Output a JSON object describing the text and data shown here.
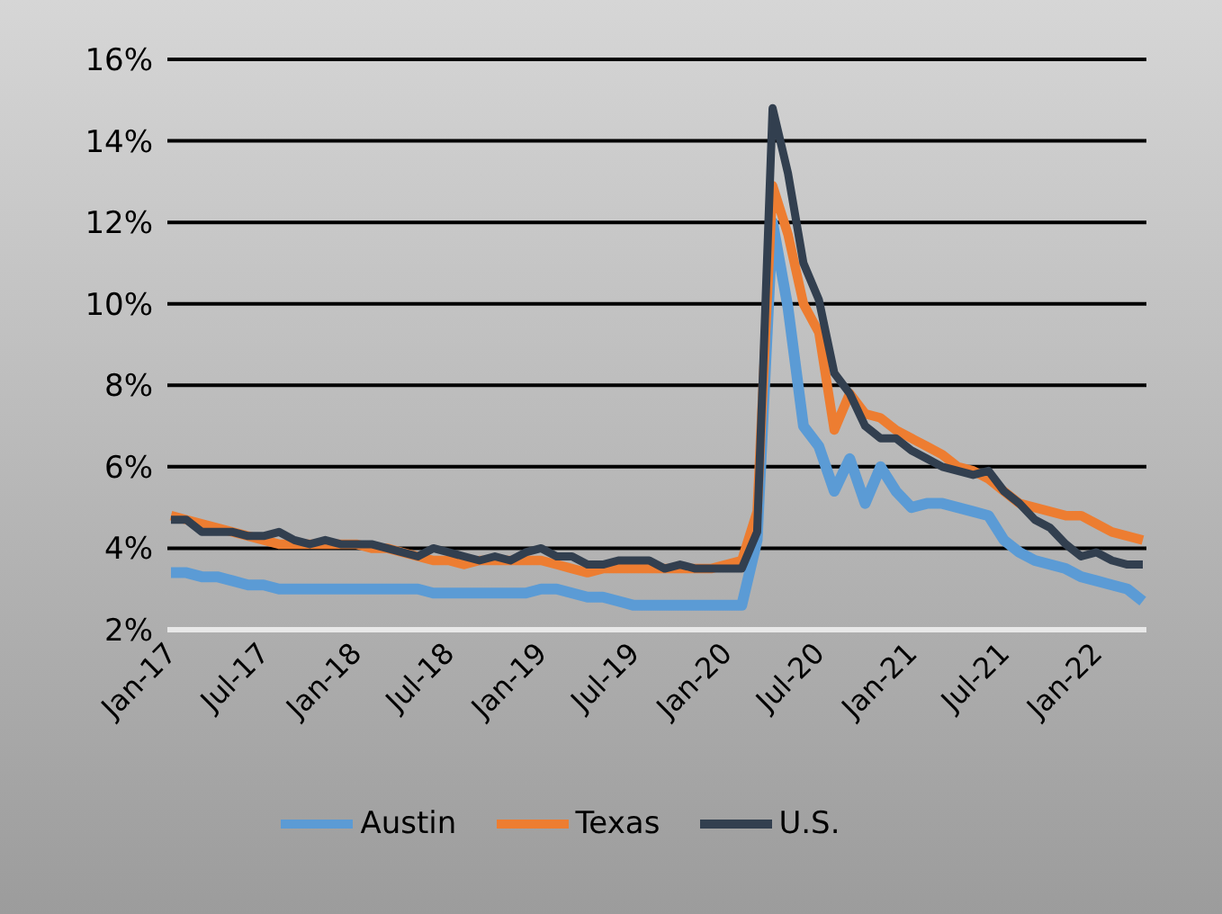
{
  "chart_data": {
    "type": "line",
    "categories": [
      "Jan-17",
      null,
      null,
      null,
      null,
      null,
      "Jul-17",
      null,
      null,
      null,
      null,
      null,
      "Jan-18",
      null,
      null,
      null,
      null,
      null,
      "Jul-18",
      null,
      null,
      null,
      null,
      null,
      "Jan-19",
      null,
      null,
      null,
      null,
      null,
      "Jul-19",
      null,
      null,
      null,
      null,
      null,
      "Jan-20",
      null,
      null,
      null,
      null,
      null,
      "Jul-20",
      null,
      null,
      null,
      null,
      null,
      "Jan-21",
      null,
      null,
      null,
      null,
      null,
      "Jul-21",
      null,
      null,
      null,
      null,
      null,
      "Jan-22",
      null,
      null,
      null
    ],
    "series": [
      {
        "name": "Austin",
        "color": "#5b9bd5",
        "values": [
          3.4,
          3.4,
          3.3,
          3.3,
          3.2,
          3.1,
          3.1,
          3.0,
          3.0,
          3.0,
          3.0,
          3.0,
          3.0,
          3.0,
          3.0,
          3.0,
          3.0,
          2.9,
          2.9,
          2.9,
          2.9,
          2.9,
          2.9,
          2.9,
          3.0,
          3.0,
          2.9,
          2.8,
          2.8,
          2.7,
          2.6,
          2.6,
          2.6,
          2.6,
          2.6,
          2.6,
          2.6,
          2.6,
          4.2,
          12.0,
          9.9,
          7.0,
          6.5,
          5.4,
          6.2,
          5.1,
          6.0,
          5.4,
          5.0,
          5.1,
          5.1,
          5.0,
          4.9,
          4.8,
          4.2,
          3.9,
          3.7,
          3.6,
          3.5,
          3.3,
          3.2,
          3.1,
          3.0,
          2.7
        ]
      },
      {
        "name": "Texas",
        "color": "#ed7d31",
        "values": [
          4.8,
          4.7,
          4.6,
          4.5,
          4.4,
          4.3,
          4.2,
          4.1,
          4.1,
          4.1,
          4.1,
          4.1,
          4.1,
          4.0,
          4.0,
          3.9,
          3.8,
          3.7,
          3.7,
          3.6,
          3.7,
          3.7,
          3.7,
          3.7,
          3.7,
          3.6,
          3.5,
          3.4,
          3.5,
          3.5,
          3.5,
          3.5,
          3.5,
          3.5,
          3.5,
          3.5,
          3.6,
          3.7,
          4.9,
          12.9,
          11.7,
          10.0,
          9.3,
          6.9,
          7.8,
          7.3,
          7.2,
          6.9,
          6.7,
          6.5,
          6.3,
          6.0,
          5.9,
          5.7,
          5.4,
          5.1,
          5.0,
          4.9,
          4.8,
          4.8,
          4.6,
          4.4,
          4.3,
          4.2
        ]
      },
      {
        "name": "U.S.",
        "color": "#323f4f",
        "values": [
          4.7,
          4.7,
          4.4,
          4.4,
          4.4,
          4.3,
          4.3,
          4.4,
          4.2,
          4.1,
          4.2,
          4.1,
          4.1,
          4.1,
          4.0,
          3.9,
          3.8,
          4.0,
          3.9,
          3.8,
          3.7,
          3.8,
          3.7,
          3.9,
          4.0,
          3.8,
          3.8,
          3.6,
          3.6,
          3.7,
          3.7,
          3.7,
          3.5,
          3.6,
          3.5,
          3.5,
          3.5,
          3.5,
          4.4,
          14.8,
          13.2,
          11.0,
          10.1,
          8.3,
          7.8,
          7.0,
          6.7,
          6.7,
          6.4,
          6.2,
          6.0,
          5.9,
          5.8,
          5.9,
          5.4,
          5.1,
          4.7,
          4.5,
          4.1,
          3.8,
          3.9,
          3.7,
          3.6,
          3.6
        ]
      }
    ],
    "ylim": [
      2,
      16
    ],
    "yticks": [
      {
        "value": 2,
        "label": "2%"
      },
      {
        "value": 4,
        "label": "4%"
      },
      {
        "value": 6,
        "label": "6%"
      },
      {
        "value": 8,
        "label": "8%"
      },
      {
        "value": 10,
        "label": "10%"
      },
      {
        "value": 12,
        "label": "12%"
      },
      {
        "value": 14,
        "label": "14%"
      },
      {
        "value": 16,
        "label": "16%"
      }
    ],
    "grid": "y",
    "legend": "bottom"
  }
}
